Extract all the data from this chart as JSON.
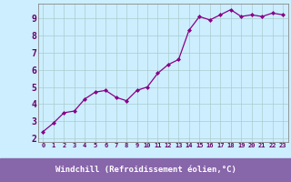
{
  "x": [
    0,
    1,
    2,
    3,
    4,
    5,
    6,
    7,
    8,
    9,
    10,
    11,
    12,
    13,
    14,
    15,
    16,
    17,
    18,
    19,
    20,
    21,
    22,
    23
  ],
  "y": [
    2.4,
    2.9,
    3.5,
    3.6,
    4.3,
    4.7,
    4.8,
    4.4,
    4.2,
    4.8,
    5.0,
    5.8,
    6.3,
    6.6,
    8.3,
    9.1,
    8.9,
    9.2,
    9.5,
    9.1,
    9.2,
    9.1,
    9.3,
    9.2
  ],
  "line_color": "#880088",
  "marker": "D",
  "marker_size": 2.0,
  "bg_color": "#cceeff",
  "grid_color": "#aacccc",
  "xlabel": "Windchill (Refroidissement éolien,°C)",
  "xlabel_bg": "#8866aa",
  "ytick_labels": [
    "2",
    "3",
    "4",
    "5",
    "6",
    "7",
    "8",
    "9"
  ],
  "ytick_vals": [
    2,
    3,
    4,
    5,
    6,
    7,
    8,
    9
  ],
  "xlim": [
    -0.5,
    23.5
  ],
  "ylim": [
    1.8,
    9.85
  ],
  "tick_color": "#660066"
}
